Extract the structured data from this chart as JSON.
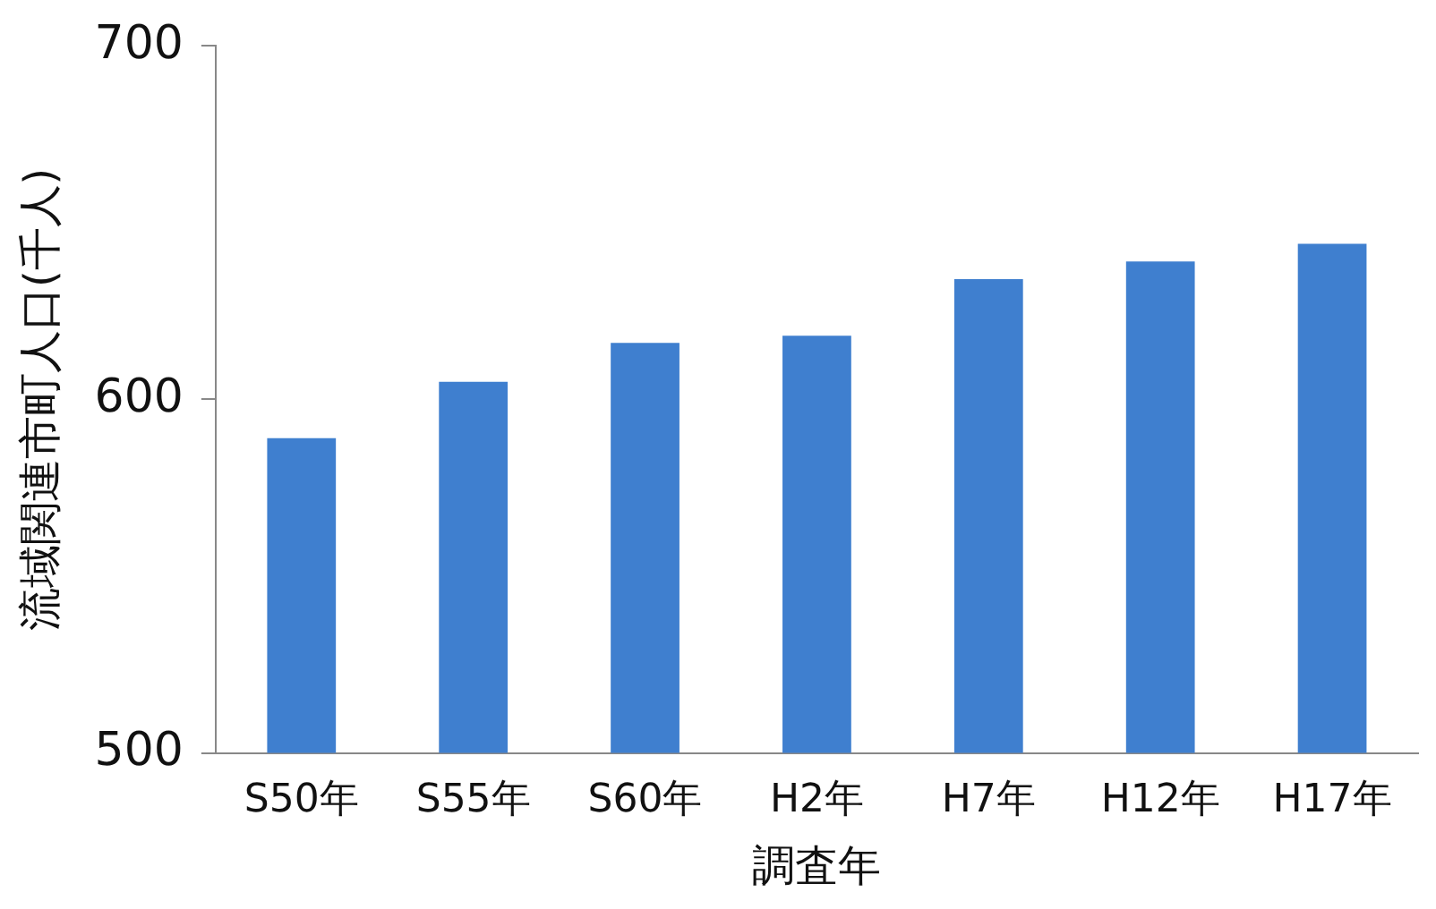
{
  "chart_data": {
    "type": "bar",
    "xlabel": "調査年",
    "ylabel": "流域関連市町人口(千人)",
    "categories": [
      "S50年",
      "S55年",
      "S60年",
      "H2年",
      "H7年",
      "H12年",
      "H17年"
    ],
    "values": [
      589,
      605,
      616,
      618,
      634,
      639,
      644
    ],
    "color": "#3f7fcf",
    "ylim": [
      500,
      700
    ],
    "yticks": [
      500,
      600,
      700
    ],
    "grid": false,
    "legend": false
  }
}
